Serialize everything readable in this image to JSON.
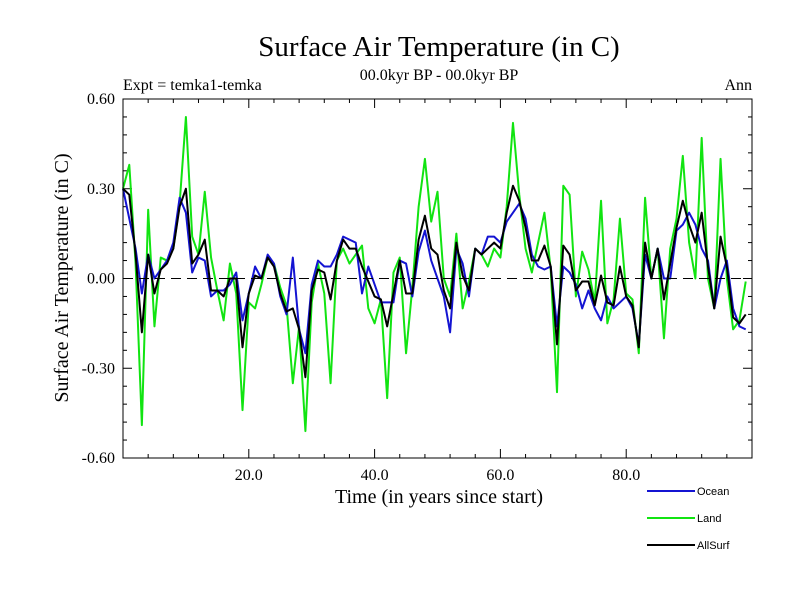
{
  "chart_data": {
    "type": "line",
    "title": "Surface Air Temperature (in C)",
    "subtitle": "00.0kyr BP - 00.0kyr BP",
    "left_label": "Expt = temka1-temka",
    "right_label": "Ann",
    "xlabel": "Time (in years since start)",
    "ylabel": "Surface Air Temperature (in C)",
    "xlim": [
      0,
      100
    ],
    "ylim": [
      -0.6,
      0.6
    ],
    "x_ticks": [
      20,
      40,
      60,
      80
    ],
    "x_tick_labels": [
      "20.0",
      "40.0",
      "60.0",
      "80.0"
    ],
    "y_ticks": [
      -0.6,
      -0.3,
      0,
      0.3,
      0.6
    ],
    "y_tick_labels": [
      "-0.60",
      "-0.30",
      "0.00",
      "0.30",
      "0.60"
    ],
    "reference_line": 0,
    "legend_position": "bottom-right",
    "x": [
      0,
      1,
      2,
      3,
      4,
      5,
      6,
      7,
      8,
      9,
      10,
      11,
      12,
      13,
      14,
      15,
      16,
      17,
      18,
      19,
      20,
      21,
      22,
      23,
      24,
      25,
      26,
      27,
      28,
      29,
      30,
      31,
      32,
      33,
      34,
      35,
      36,
      37,
      38,
      39,
      40,
      41,
      42,
      43,
      44,
      45,
      46,
      47,
      48,
      49,
      50,
      51,
      52,
      53,
      54,
      55,
      56,
      57,
      58,
      59,
      60,
      61,
      62,
      63,
      64,
      65,
      66,
      67,
      68,
      69,
      70,
      71,
      72,
      73,
      74,
      75,
      76,
      77,
      78,
      79,
      80,
      81,
      82,
      83,
      84,
      85,
      86,
      87,
      88,
      89,
      90,
      91,
      92,
      93,
      94,
      95,
      96,
      97,
      98,
      99
    ],
    "series": [
      {
        "name": "Ocean",
        "color": "#1414d2",
        "values": [
          0.3,
          0.2,
          0.1,
          -0.05,
          0.08,
          0.0,
          0.03,
          0.06,
          0.12,
          0.27,
          0.22,
          0.02,
          0.07,
          0.06,
          -0.06,
          -0.04,
          -0.04,
          -0.02,
          0.02,
          -0.14,
          -0.05,
          0.04,
          0.0,
          0.08,
          0.05,
          -0.06,
          -0.12,
          0.07,
          -0.17,
          -0.25,
          -0.02,
          0.06,
          0.04,
          0.04,
          0.08,
          0.14,
          0.13,
          0.12,
          -0.05,
          0.04,
          -0.02,
          -0.08,
          -0.08,
          -0.08,
          0.06,
          0.05,
          -0.06,
          0.09,
          0.16,
          0.06,
          0.0,
          -0.06,
          -0.18,
          0.1,
          0.05,
          -0.06,
          0.1,
          0.08,
          0.14,
          0.14,
          0.12,
          0.19,
          0.22,
          0.25,
          0.2,
          0.08,
          0.04,
          0.03,
          0.04,
          -0.16,
          0.04,
          0.02,
          -0.02,
          -0.1,
          -0.04,
          -0.1,
          -0.14,
          -0.06,
          -0.1,
          -0.08,
          -0.06,
          -0.1,
          -0.22,
          0.08,
          0.0,
          0.1,
          0.0,
          0.0,
          0.16,
          0.18,
          0.22,
          0.18,
          0.1,
          0.06,
          -0.1,
          0.0,
          0.06,
          -0.1,
          -0.16,
          -0.17
        ]
      },
      {
        "name": "Land",
        "color": "#11e411",
        "values": [
          0.3,
          0.38,
          0.05,
          -0.49,
          0.23,
          -0.16,
          0.07,
          0.06,
          0.1,
          0.25,
          0.54,
          0.14,
          0.08,
          0.29,
          0.07,
          -0.04,
          -0.14,
          0.05,
          -0.05,
          -0.44,
          -0.08,
          -0.1,
          -0.02,
          0.07,
          0.05,
          -0.03,
          -0.09,
          -0.35,
          -0.16,
          -0.51,
          -0.08,
          0.05,
          -0.05,
          -0.35,
          0.06,
          0.1,
          0.05,
          0.08,
          0.11,
          -0.1,
          -0.15,
          -0.07,
          -0.4,
          0.02,
          0.07,
          -0.25,
          -0.03,
          0.24,
          0.4,
          0.19,
          0.29,
          0.0,
          -0.06,
          0.15,
          -0.1,
          -0.01,
          0.1,
          0.08,
          0.04,
          0.1,
          0.07,
          0.24,
          0.52,
          0.28,
          0.1,
          0.02,
          0.12,
          0.22,
          0.03,
          -0.38,
          0.31,
          0.28,
          -0.06,
          0.09,
          0.03,
          -0.08,
          0.26,
          -0.15,
          -0.07,
          0.2,
          -0.05,
          -0.07,
          -0.25,
          0.27,
          0.0,
          0.1,
          -0.2,
          0.1,
          0.2,
          0.41,
          0.12,
          0.0,
          0.47,
          0.0,
          -0.1,
          0.4,
          0.0,
          -0.17,
          -0.14,
          -0.01
        ]
      },
      {
        "name": "AllSurf",
        "color": "#000000",
        "values": [
          0.3,
          0.28,
          0.08,
          -0.18,
          0.08,
          -0.05,
          0.03,
          0.05,
          0.1,
          0.24,
          0.3,
          0.05,
          0.08,
          0.13,
          -0.04,
          -0.04,
          -0.06,
          0.0,
          0.0,
          -0.23,
          -0.05,
          0.01,
          0.0,
          0.07,
          0.04,
          -0.05,
          -0.11,
          -0.1,
          -0.17,
          -0.33,
          -0.04,
          0.03,
          0.02,
          -0.07,
          0.06,
          0.13,
          0.1,
          0.1,
          0.04,
          -0.01,
          -0.06,
          -0.07,
          -0.16,
          -0.05,
          0.06,
          -0.05,
          -0.05,
          0.13,
          0.21,
          0.1,
          0.08,
          -0.04,
          -0.1,
          0.12,
          0.01,
          -0.04,
          0.1,
          0.08,
          0.1,
          0.12,
          0.1,
          0.22,
          0.31,
          0.26,
          0.17,
          0.06,
          0.06,
          0.11,
          0.04,
          -0.22,
          0.11,
          0.08,
          -0.04,
          -0.01,
          -0.01,
          -0.09,
          0.01,
          -0.08,
          -0.09,
          0.04,
          -0.06,
          -0.09,
          -0.23,
          0.12,
          0.0,
          0.1,
          -0.07,
          0.05,
          0.17,
          0.26,
          0.18,
          0.12,
          0.22,
          0.04,
          -0.1,
          0.14,
          0.04,
          -0.13,
          -0.15,
          -0.12
        ]
      }
    ]
  }
}
